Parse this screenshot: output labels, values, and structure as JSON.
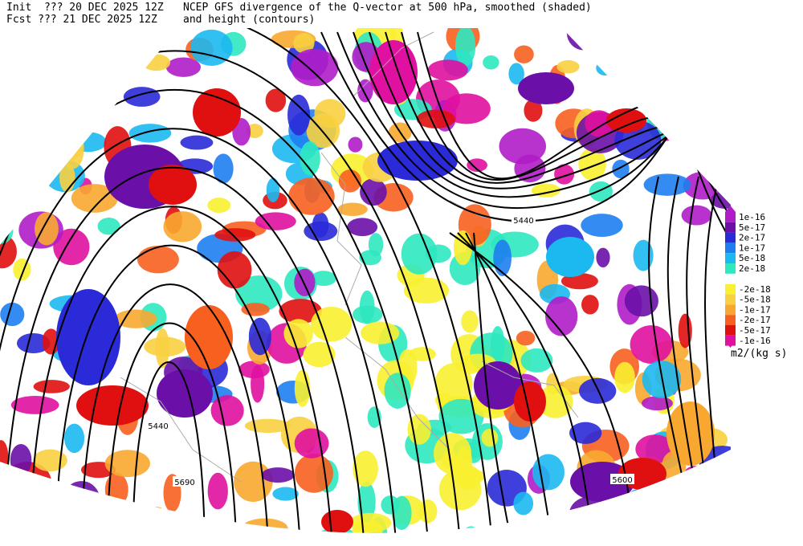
{
  "header": {
    "init": "Init  ??? 20 DEC 2025 12Z",
    "title": "NCEP GFS divergence of the Q-vector at 500 hPa, smoothed (shaded)",
    "fcst": "Fcst ??? 21 DEC 2025 12Z",
    "subtitle": "and height (contours)"
  },
  "colorbar": {
    "labels": [
      "1e-16",
      "5e-17",
      "2e-17",
      "1e-17",
      "5e-18",
      "2e-18",
      "-2e-18",
      "-5e-18",
      "-1e-17",
      "-2e-17",
      "-5e-17",
      "-1e-16"
    ],
    "units": "m2/(kg s)"
  },
  "contour_labels": [
    "5440",
    "5440",
    "5690",
    "5600"
  ]
}
